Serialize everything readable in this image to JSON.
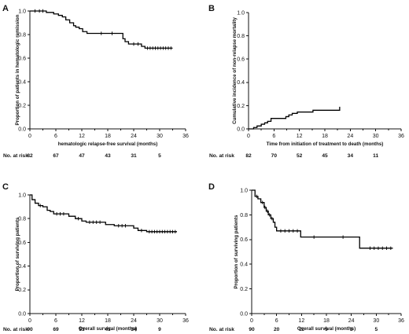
{
  "chart_data": [
    {
      "panel": "A",
      "type": "line",
      "step": true,
      "xlabel": "hematologic relapse-free survival (months)",
      "ylabel": "Proportion of patients in hematologic remission",
      "xlim": [
        0,
        36
      ],
      "ylim": [
        0,
        1.0
      ],
      "xticks": [
        "0",
        "6",
        "12",
        "18",
        "24",
        "30",
        "36"
      ],
      "yticks": [
        "0.0",
        "0.2",
        "0.4",
        "0.6",
        "0.8",
        "1.0"
      ],
      "steps": [
        [
          0,
          1.0
        ],
        [
          3.8,
          0.988
        ],
        [
          5.5,
          0.975
        ],
        [
          6.6,
          0.963
        ],
        [
          7.5,
          0.95
        ],
        [
          8.3,
          0.925
        ],
        [
          9.2,
          0.9
        ],
        [
          10.1,
          0.875
        ],
        [
          10.6,
          0.863
        ],
        [
          11.4,
          0.85
        ],
        [
          12.2,
          0.825
        ],
        [
          13.2,
          0.81
        ],
        [
          21.5,
          0.765
        ],
        [
          22.0,
          0.74
        ],
        [
          22.8,
          0.72
        ],
        [
          25.8,
          0.7
        ],
        [
          26.6,
          0.685
        ],
        [
          33.0,
          0.685
        ]
      ],
      "censored": [
        [
          1.2,
          1.0
        ],
        [
          2.2,
          1.0
        ],
        [
          3.0,
          1.0
        ],
        [
          16.5,
          0.81
        ],
        [
          19.0,
          0.81
        ],
        [
          24.0,
          0.72
        ],
        [
          25.0,
          0.72
        ],
        [
          27.2,
          0.685
        ],
        [
          27.8,
          0.685
        ],
        [
          28.4,
          0.685
        ],
        [
          29.0,
          0.685
        ],
        [
          29.6,
          0.685
        ],
        [
          30.2,
          0.685
        ],
        [
          30.8,
          0.685
        ],
        [
          31.4,
          0.685
        ],
        [
          32.0,
          0.685
        ],
        [
          32.6,
          0.685
        ]
      ],
      "risk": {
        "label": "No. at risk",
        "times": [
          0,
          6,
          12,
          18,
          24,
          30
        ],
        "values": [
          "82",
          "67",
          "47",
          "43",
          "31",
          "5"
        ]
      }
    },
    {
      "panel": "B",
      "type": "line",
      "step": true,
      "xlabel": "Time from initiation of treatment to death (months)",
      "ylabel": "Cumulative incidence of non-relapse mortality",
      "xlim": [
        0,
        36
      ],
      "ylim": [
        0,
        1.0
      ],
      "xticks": [
        "0",
        "6",
        "12",
        "18",
        "24",
        "30",
        "36"
      ],
      "yticks": [
        "0.0",
        "0.2",
        "0.4",
        "0.6",
        "0.8",
        "1.0"
      ],
      "steps": [
        [
          0,
          0.0
        ],
        [
          1.2,
          0.012
        ],
        [
          2.0,
          0.025
        ],
        [
          3.0,
          0.04
        ],
        [
          3.8,
          0.052
        ],
        [
          4.5,
          0.065
        ],
        [
          5.3,
          0.09
        ],
        [
          8.8,
          0.105
        ],
        [
          9.5,
          0.12
        ],
        [
          10.3,
          0.133
        ],
        [
          11.5,
          0.145
        ],
        [
          15.2,
          0.16
        ],
        [
          21.4,
          0.16
        ],
        [
          21.5,
          0.19
        ]
      ],
      "censored": [],
      "risk": {
        "label": "No. at risk",
        "times": [
          0,
          6,
          12,
          18,
          24,
          30
        ],
        "values": [
          "82",
          "70",
          "52",
          "45",
          "34",
          "11"
        ]
      }
    },
    {
      "panel": "C",
      "type": "line",
      "step": true,
      "xlabel": "Overall survival (months)",
      "ylabel": "Proportion of surviving patients",
      "xlim": [
        0,
        36
      ],
      "ylim": [
        0,
        1.0
      ],
      "xticks": [
        "0",
        "6",
        "12",
        "18",
        "24",
        "30",
        "36"
      ],
      "yticks": [
        "0.0",
        "0.2",
        "0.4",
        "0.6",
        "0.8",
        "1.0"
      ],
      "steps": [
        [
          0,
          1.0
        ],
        [
          0.5,
          0.96
        ],
        [
          1.2,
          0.93
        ],
        [
          2.0,
          0.91
        ],
        [
          3.0,
          0.9
        ],
        [
          4.0,
          0.87
        ],
        [
          4.7,
          0.86
        ],
        [
          5.5,
          0.84
        ],
        [
          9.0,
          0.82
        ],
        [
          10.5,
          0.8
        ],
        [
          12.0,
          0.78
        ],
        [
          13.0,
          0.77
        ],
        [
          17.5,
          0.75
        ],
        [
          19.5,
          0.74
        ],
        [
          24.0,
          0.72
        ],
        [
          25.0,
          0.7
        ],
        [
          27.0,
          0.69
        ],
        [
          34.0,
          0.69
        ]
      ],
      "censored": [
        [
          2.4,
          0.91
        ],
        [
          6.2,
          0.84
        ],
        [
          7.0,
          0.84
        ],
        [
          7.8,
          0.84
        ],
        [
          11.2,
          0.8
        ],
        [
          13.8,
          0.77
        ],
        [
          14.6,
          0.77
        ],
        [
          15.4,
          0.77
        ],
        [
          16.2,
          0.77
        ],
        [
          20.5,
          0.74
        ],
        [
          21.3,
          0.74
        ],
        [
          22.1,
          0.74
        ],
        [
          25.8,
          0.7
        ],
        [
          27.6,
          0.69
        ],
        [
          28.2,
          0.69
        ],
        [
          28.8,
          0.69
        ],
        [
          29.4,
          0.69
        ],
        [
          30.0,
          0.69
        ],
        [
          30.6,
          0.69
        ],
        [
          31.2,
          0.69
        ],
        [
          31.8,
          0.69
        ],
        [
          32.4,
          0.69
        ],
        [
          33.0,
          0.69
        ],
        [
          33.6,
          0.69
        ]
      ],
      "risk": {
        "label": "No. at risk",
        "times": [
          0,
          6,
          12,
          18,
          24,
          30
        ],
        "values": [
          "90",
          "69",
          "53",
          "45",
          "34",
          "9"
        ]
      }
    },
    {
      "panel": "D",
      "type": "line",
      "step": true,
      "xlabel": "Overall survival (months)",
      "ylabel": "Proportion of surviving patients",
      "xlim": [
        0,
        36
      ],
      "ylim": [
        0,
        1.0
      ],
      "xticks": [
        "0",
        "6",
        "12",
        "18",
        "24",
        "30",
        "36"
      ],
      "yticks": [
        "0.0",
        "0.2",
        "0.4",
        "0.6",
        "0.8",
        "1.0"
      ],
      "steps": [
        [
          0,
          1.0
        ],
        [
          0.8,
          0.95
        ],
        [
          1.5,
          0.93
        ],
        [
          2.2,
          0.9
        ],
        [
          3.0,
          0.86
        ],
        [
          3.5,
          0.83
        ],
        [
          4.0,
          0.8
        ],
        [
          4.6,
          0.77
        ],
        [
          5.2,
          0.74
        ],
        [
          5.6,
          0.7
        ],
        [
          6.0,
          0.67
        ],
        [
          11.8,
          0.62
        ],
        [
          26.0,
          0.53
        ],
        [
          34.0,
          0.53
        ]
      ],
      "censored": [
        [
          1.2,
          0.95
        ],
        [
          2.6,
          0.9
        ],
        [
          3.2,
          0.86
        ],
        [
          3.8,
          0.83
        ],
        [
          4.3,
          0.8
        ],
        [
          4.9,
          0.77
        ],
        [
          7.0,
          0.67
        ],
        [
          8.0,
          0.67
        ],
        [
          9.0,
          0.67
        ],
        [
          10.0,
          0.67
        ],
        [
          11.0,
          0.67
        ],
        [
          15.0,
          0.62
        ],
        [
          22.0,
          0.62
        ],
        [
          28.5,
          0.53
        ],
        [
          29.5,
          0.53
        ],
        [
          30.5,
          0.53
        ],
        [
          31.5,
          0.53
        ],
        [
          32.5,
          0.53
        ],
        [
          33.5,
          0.53
        ]
      ],
      "risk": {
        "label": "No. at risk",
        "times": [
          0,
          6,
          12,
          18,
          24,
          30
        ],
        "values": [
          "90",
          "20",
          "11",
          "9",
          "8",
          "5"
        ]
      }
    }
  ]
}
